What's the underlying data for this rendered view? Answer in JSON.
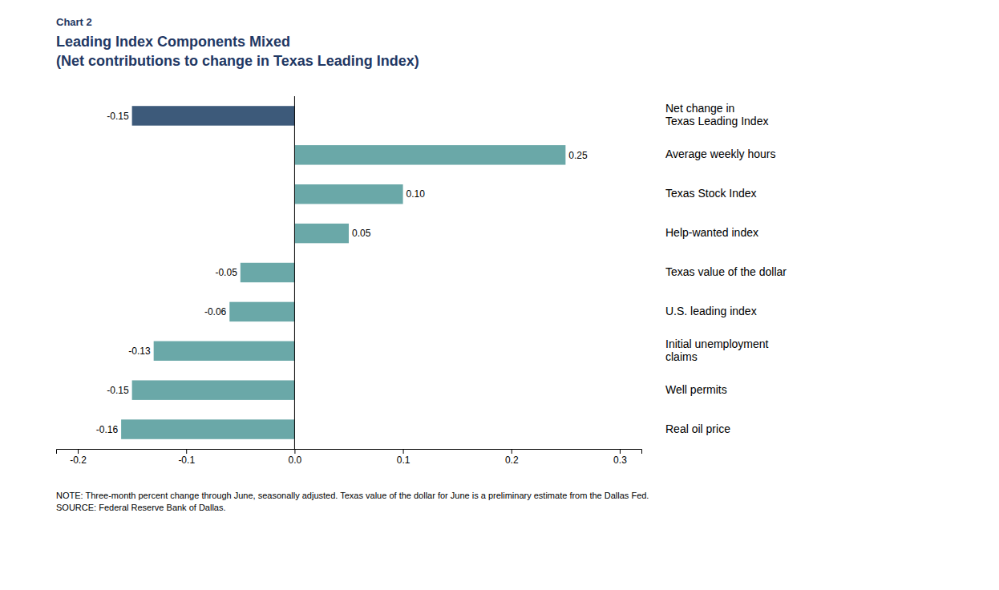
{
  "chart_data": {
    "type": "bar",
    "orientation": "horizontal",
    "label": "Chart 2",
    "title": "Leading Index Components Mixed",
    "subtitle": "(Net contributions to change in Texas Leading Index)",
    "note": "NOTE:  Three-month percent change through June, seasonally adjusted. Texas value of the dollar for June is a preliminary estimate  from the Dallas Fed.\nSOURCE:  Federal Reserve Bank of Dallas.",
    "categories": [
      "Net change in\nTexas Leading Index",
      "Average weekly hours",
      "Texas Stock Index",
      "Help-wanted index",
      "Texas value of the dollar",
      "U.S. leading index",
      "Initial unemployment\nclaims",
      "Well permits",
      "Real oil price"
    ],
    "values": [
      -0.15,
      0.25,
      0.1,
      0.05,
      -0.05,
      -0.06,
      -0.13,
      -0.15,
      -0.16
    ],
    "value_labels": [
      "-0.15",
      "0.25",
      "0.10",
      "0.05",
      "-0.05",
      "-0.06",
      "-0.13",
      "-0.15",
      "-0.16"
    ],
    "colors": [
      "#3d5a7a",
      "#6aa8a8",
      "#6aa8a8",
      "#6aa8a8",
      "#6aa8a8",
      "#6aa8a8",
      "#6aa8a8",
      "#6aa8a8",
      "#6aa8a8"
    ],
    "xlim": [
      -0.22,
      0.32
    ],
    "xticks": [
      -0.2,
      -0.1,
      {
        "value": 0.0,
        "label": "0.0"
      },
      0.1,
      0.2,
      0.3
    ],
    "grid": false,
    "data_labels": true,
    "tick_labels": "x"
  }
}
